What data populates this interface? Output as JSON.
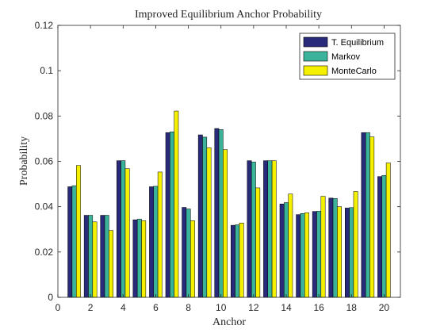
{
  "chart_data": {
    "type": "bar",
    "title": "Improved Equilibrium Anchor Probability",
    "xlabel": "Anchor",
    "ylabel": "Probability",
    "categories": [
      1,
      2,
      3,
      4,
      5,
      6,
      7,
      8,
      9,
      10,
      11,
      12,
      13,
      14,
      15,
      16,
      17,
      18,
      19,
      20
    ],
    "xlim": [
      0,
      21
    ],
    "ylim": [
      0,
      0.12
    ],
    "xticks": [
      0,
      2,
      4,
      6,
      8,
      10,
      12,
      14,
      16,
      18,
      20
    ],
    "yticks": [
      0,
      0.02,
      0.04,
      0.06,
      0.08,
      0.1,
      0.12
    ],
    "ytick_labels": [
      "0",
      "0.02",
      "0.04",
      "0.06",
      "0.08",
      "0.1",
      "0.12"
    ],
    "legend_position": "top-right",
    "grid": false,
    "series": [
      {
        "name": "T. Equilibrium",
        "color": "#2a2a7a",
        "values": [
          0.0488,
          0.0362,
          0.0362,
          0.0603,
          0.0342,
          0.0488,
          0.0727,
          0.0397,
          0.0717,
          0.0745,
          0.0318,
          0.0603,
          0.0603,
          0.0412,
          0.0365,
          0.0379,
          0.0438,
          0.0394,
          0.0727,
          0.0533
        ]
      },
      {
        "name": "Markov",
        "color": "#3bb39b",
        "values": [
          0.0492,
          0.0362,
          0.0362,
          0.0603,
          0.0345,
          0.049,
          0.073,
          0.039,
          0.0707,
          0.074,
          0.032,
          0.0597,
          0.0603,
          0.0418,
          0.037,
          0.038,
          0.0436,
          0.0396,
          0.0727,
          0.0538
        ]
      },
      {
        "name": "MonteCarlo",
        "color": "#f4f000",
        "values": [
          0.0582,
          0.0333,
          0.0295,
          0.0568,
          0.0338,
          0.0553,
          0.0822,
          0.0338,
          0.066,
          0.0652,
          0.0328,
          0.0483,
          0.0603,
          0.0456,
          0.0373,
          0.0446,
          0.04,
          0.0467,
          0.0708,
          0.0593
        ]
      }
    ]
  }
}
